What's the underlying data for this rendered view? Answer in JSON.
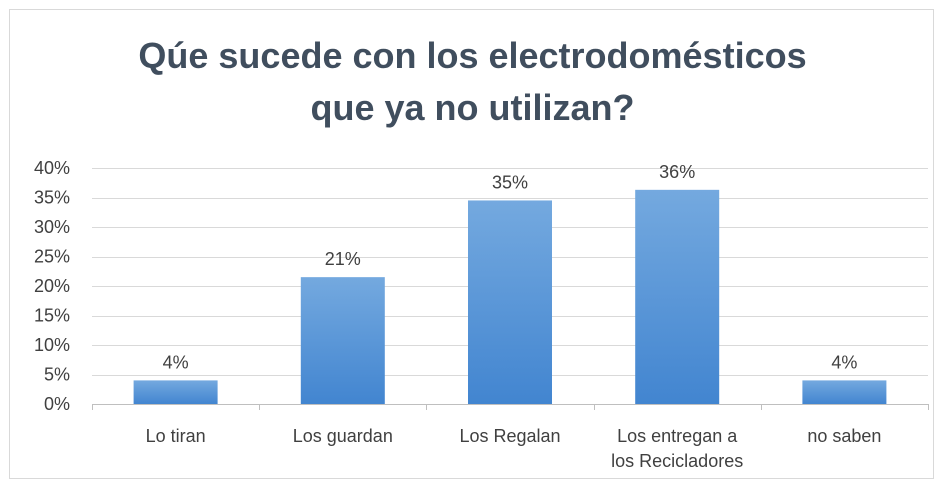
{
  "chart_data": {
    "type": "bar",
    "title_lines": [
      "Qúe sucede con los electrodomésticos",
      "que ya no utilizan?"
    ],
    "categories": [
      [
        "Lo tiran"
      ],
      [
        "Los guardan"
      ],
      [
        "Los Regalan"
      ],
      [
        "Los entregan a",
        "los Recicladores"
      ],
      [
        "no saben"
      ]
    ],
    "values": [
      0.04,
      0.215,
      0.345,
      0.363,
      0.04
    ],
    "data_labels": [
      "4%",
      "21%",
      "35%",
      "36%",
      "4%"
    ],
    "ylim": [
      0,
      0.4
    ],
    "yticks": [
      0,
      0.05,
      0.1,
      0.15,
      0.2,
      0.25,
      0.3,
      0.35,
      0.4
    ],
    "ytick_labels": [
      "0%",
      "5%",
      "10%",
      "15%",
      "20%",
      "25%",
      "30%",
      "35%",
      "40%"
    ],
    "grid": true,
    "bar_color_top": "#74a9df",
    "bar_color_bottom": "#4285d0",
    "title_color": "#404e5e"
  }
}
